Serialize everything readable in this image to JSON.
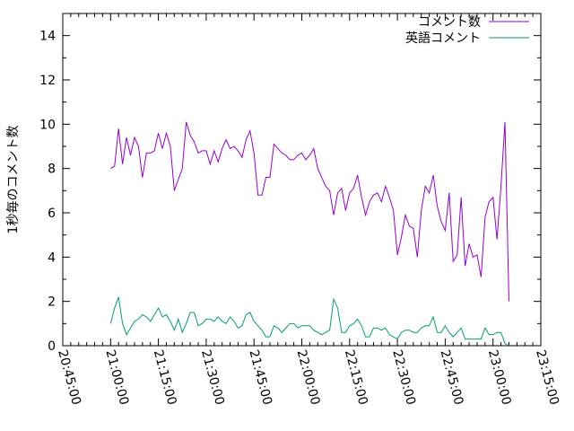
{
  "chart_data": {
    "type": "line",
    "title": "",
    "xlabel": "",
    "ylabel": "1秒毎のコメント数",
    "xlim": [
      "20:45:00",
      "23:15:00"
    ],
    "ylim": [
      0,
      15
    ],
    "x_ticks": [
      "20:45:00",
      "21:00:00",
      "21:15:00",
      "21:30:00",
      "21:45:00",
      "22:00:00",
      "22:15:00",
      "22:30:00",
      "22:45:00",
      "23:00:00",
      "23:15:00"
    ],
    "y_ticks": [
      "0",
      "2",
      "4",
      "6",
      "8",
      "10",
      "12",
      "14"
    ],
    "grid": false,
    "legend_position": "top-right",
    "x_interval_minutes": 1.25,
    "x_start": "21:00:00",
    "series": [
      {
        "name": "コメント数",
        "color": "#9400d3",
        "values": [
          8.0,
          8.1,
          9.8,
          8.2,
          9.4,
          8.6,
          9.4,
          9.0,
          7.6,
          8.7,
          8.7,
          8.8,
          9.6,
          8.9,
          9.6,
          9.0,
          7.0,
          7.5,
          8.0,
          10.1,
          9.5,
          9.2,
          8.7,
          8.8,
          8.8,
          8.2,
          8.8,
          8.3,
          8.9,
          9.3,
          8.9,
          9.0,
          8.8,
          8.5,
          9.3,
          9.7,
          8.7,
          6.8,
          6.8,
          7.6,
          7.6,
          9.1,
          8.9,
          8.7,
          8.6,
          8.4,
          8.4,
          8.6,
          8.7,
          8.4,
          8.6,
          8.9,
          8.0,
          7.6,
          7.2,
          7.0,
          5.9,
          6.9,
          7.1,
          6.1,
          6.9,
          7.1,
          7.7,
          6.7,
          5.9,
          6.5,
          6.8,
          6.9,
          6.5,
          7.2,
          6.7,
          6.1,
          4.1,
          4.9,
          5.9,
          5.4,
          5.3,
          4.0,
          6.1,
          7.2,
          6.9,
          7.7,
          6.3,
          5.6,
          5.2,
          6.9,
          3.8,
          4.1,
          6.7,
          3.6,
          4.6,
          4.0,
          4.1,
          3.1,
          5.8,
          6.5,
          6.7,
          4.8,
          7.2,
          10.1,
          2.0
        ]
      },
      {
        "name": "英語コメント",
        "color": "#009e73",
        "values": [
          1.0,
          1.7,
          2.2,
          1.0,
          0.5,
          0.8,
          1.1,
          1.2,
          1.4,
          1.3,
          1.1,
          1.4,
          1.7,
          1.3,
          1.4,
          1.1,
          0.7,
          1.2,
          0.6,
          1.0,
          1.5,
          1.5,
          0.9,
          1.0,
          1.2,
          1.2,
          1.1,
          1.3,
          1.1,
          1.0,
          1.3,
          1.1,
          0.8,
          0.9,
          1.4,
          1.5,
          1.1,
          0.9,
          0.7,
          0.4,
          0.4,
          0.9,
          0.8,
          0.6,
          0.8,
          1.0,
          1.0,
          0.8,
          0.9,
          0.9,
          0.9,
          0.7,
          0.6,
          0.5,
          0.6,
          0.7,
          2.1,
          1.7,
          0.6,
          0.6,
          0.9,
          1.0,
          1.2,
          0.9,
          0.4,
          0.4,
          0.8,
          0.8,
          0.7,
          0.8,
          0.5,
          0.4,
          0.3,
          0.6,
          0.7,
          0.7,
          0.6,
          0.6,
          0.8,
          0.9,
          0.9,
          1.3,
          0.6,
          0.6,
          0.9,
          0.6,
          0.4,
          0.6,
          0.8,
          0.3,
          0.3,
          0.3,
          0.3,
          0.3,
          0.8,
          0.5,
          0.5,
          0.6,
          0.6,
          0.1,
          0.0
        ]
      }
    ]
  }
}
